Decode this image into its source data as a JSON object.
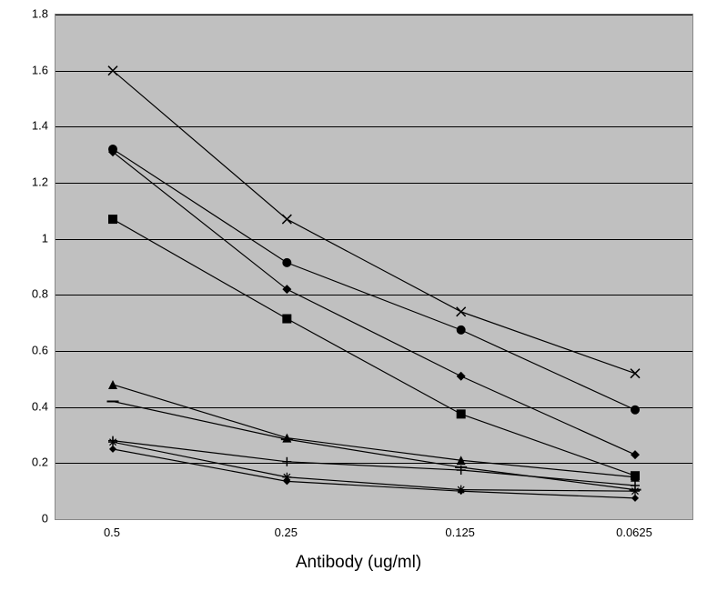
{
  "chart": {
    "type": "line",
    "background_color": "#ffffff",
    "plot_background_color": "#c0c0c0",
    "grid_color": "#000000",
    "axis_color": "#888888",
    "line_color": "#000000",
    "line_width": 1.2,
    "xlabel": "Antibody (ug/ml)",
    "xlabel_fontsize": 19,
    "tick_fontsize": 13,
    "ylim": [
      0,
      1.8
    ],
    "ytick_step": 0.2,
    "yticks": [
      "0",
      "0.2",
      "0.4",
      "0.6",
      "0.8",
      "1",
      "1.2",
      "1.4",
      "1.6",
      "1.8"
    ],
    "x_categories": [
      "0.5",
      "0.25",
      "0.125",
      "0.0625"
    ],
    "marker_size": 5,
    "series": [
      {
        "marker": "diamond-filled",
        "values": [
          1.31,
          0.82,
          0.51,
          0.23
        ]
      },
      {
        "marker": "square-filled",
        "values": [
          1.07,
          0.715,
          0.375,
          0.155
        ]
      },
      {
        "marker": "triangle-filled",
        "values": [
          0.48,
          0.29,
          0.21,
          0.15
        ]
      },
      {
        "marker": "x",
        "values": [
          1.6,
          1.07,
          0.74,
          0.52
        ]
      },
      {
        "marker": "asterisk",
        "values": [
          0.275,
          0.15,
          0.105,
          0.1
        ]
      },
      {
        "marker": "circle-filled",
        "values": [
          1.32,
          0.915,
          0.675,
          0.39
        ]
      },
      {
        "marker": "plus",
        "values": [
          0.28,
          0.205,
          0.175,
          0.12
        ]
      },
      {
        "marker": "dash",
        "values": [
          0.42,
          0.285,
          0.185,
          0.105
        ]
      },
      {
        "marker": "diamond-small",
        "values": [
          0.25,
          0.135,
          0.1,
          0.075
        ]
      }
    ]
  }
}
